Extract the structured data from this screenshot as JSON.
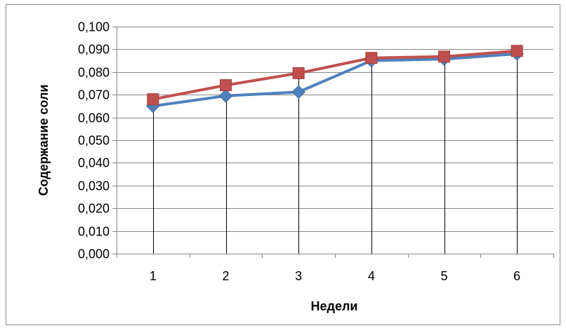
{
  "chart_data": {
    "type": "line",
    "title": "",
    "xlabel": "Недели",
    "ylabel": "Содержание соли",
    "categories": [
      "1",
      "2",
      "3",
      "4",
      "5",
      "6"
    ],
    "ylim": [
      0,
      0.1
    ],
    "ytick_step": 0.01,
    "ytick_labels": [
      "0,000",
      "0,010",
      "0,020",
      "0,030",
      "0,040",
      "0,050",
      "0,060",
      "0,070",
      "0,080",
      "0,090",
      "0,100"
    ],
    "grid": true,
    "legend": "none",
    "drop_lines": true,
    "series": [
      {
        "values": [
          0.065,
          0.0695,
          0.0712,
          0.085,
          0.0857,
          0.088
        ],
        "color": "#4F81BD",
        "marker": "diamond"
      },
      {
        "values": [
          0.068,
          0.0742,
          0.0795,
          0.0862,
          0.0868,
          0.0893
        ],
        "color": "#C0504D",
        "marker": "square"
      }
    ],
    "colors": {
      "grid": "#868686",
      "axis": "#868686",
      "drop_line": "#000000"
    }
  }
}
